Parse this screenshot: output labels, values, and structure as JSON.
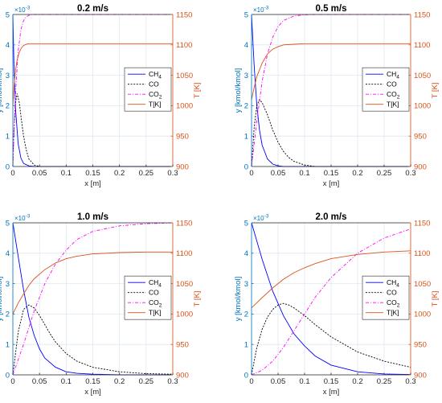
{
  "colors": {
    "left_axis": "#0072BD",
    "right_axis": "#D95319",
    "grid": "#dfe8f2",
    "axis": "#262626",
    "ch4": "#0000FF",
    "co": "#000000",
    "co2": "#FF00FF",
    "temp": "#D95319"
  },
  "chart_data": [
    {
      "type": "line",
      "title": "0.2 m/s",
      "xlabel": "x [m]",
      "ylabel_left": "y [kmol/kmol]",
      "ylabel_right": "T [K]",
      "left_exponent": "×10",
      "left_exponent_power": "-3",
      "xlim": [
        0,
        0.3
      ],
      "ylim_left": [
        0,
        5
      ],
      "ylim_right": [
        900,
        1150
      ],
      "xticks": [
        "0",
        "0.05",
        "0.1",
        "0.15",
        "0.2",
        "0.25",
        "0.3"
      ],
      "yticks_left": [
        "0",
        "1",
        "2",
        "3",
        "4",
        "5"
      ],
      "yticks_right": [
        "900",
        "950",
        "1000",
        "1050",
        "1100",
        "1150"
      ],
      "grid": true,
      "legend_position": "center-right",
      "legend": [
        {
          "label": "CH",
          "sub": "4",
          "style": "solid",
          "color_key": "ch4"
        },
        {
          "label": "CO",
          "sub": "",
          "style": "dotted",
          "color_key": "co"
        },
        {
          "label": "CO",
          "sub": "2",
          "style": "dashdot",
          "color_key": "co2"
        },
        {
          "label": "T[K]",
          "sub": "",
          "style": "solid",
          "color_key": "temp"
        }
      ],
      "series": [
        {
          "name": "CH4",
          "axis": "left",
          "x": [
            0,
            0.002,
            0.005,
            0.01,
            0.015,
            0.02,
            0.03,
            0.04,
            0.3
          ],
          "y": [
            5.0,
            3.4,
            1.9,
            0.75,
            0.28,
            0.1,
            0.02,
            0.0,
            0.0
          ]
        },
        {
          "name": "CO",
          "axis": "left",
          "x": [
            0,
            0.002,
            0.005,
            0.008,
            0.012,
            0.016,
            0.02,
            0.025,
            0.03,
            0.04,
            0.05,
            0.3
          ],
          "y": [
            0.0,
            1.2,
            2.1,
            2.4,
            2.1,
            1.55,
            1.0,
            0.55,
            0.25,
            0.05,
            0.0,
            0.0
          ]
        },
        {
          "name": "CO2",
          "axis": "left",
          "x": [
            0,
            0.002,
            0.005,
            0.01,
            0.015,
            0.02,
            0.025,
            0.03,
            0.035,
            0.3
          ],
          "y": [
            0.0,
            1.0,
            2.4,
            3.8,
            4.5,
            4.8,
            4.92,
            4.97,
            5.0,
            5.0
          ]
        },
        {
          "name": "T[K]",
          "axis": "right",
          "x": [
            0,
            0.002,
            0.005,
            0.008,
            0.012,
            0.016,
            0.02,
            0.025,
            0.03,
            0.04,
            0.3
          ],
          "y": [
            1000,
            1030,
            1058,
            1075,
            1088,
            1095,
            1099,
            1101,
            1102,
            1102,
            1102
          ]
        }
      ]
    },
    {
      "type": "line",
      "title": "0.5 m/s",
      "xlabel": "x [m]",
      "ylabel_left": "y [kmol/kmol]",
      "ylabel_right": "T [K]",
      "left_exponent": "×10",
      "left_exponent_power": "-3",
      "xlim": [
        0,
        0.3
      ],
      "ylim_left": [
        0,
        5
      ],
      "ylim_right": [
        900,
        1150
      ],
      "xticks": [
        "0",
        "0.05",
        "0.1",
        "0.15",
        "0.2",
        "0.25",
        "0.3"
      ],
      "yticks_left": [
        "0",
        "1",
        "2",
        "3",
        "4",
        "5"
      ],
      "yticks_right": [
        "900",
        "950",
        "1000",
        "1050",
        "1100",
        "1150"
      ],
      "grid": true,
      "legend_position": "center-right",
      "legend": [
        {
          "label": "CH",
          "sub": "4",
          "style": "solid",
          "color_key": "ch4"
        },
        {
          "label": "CO",
          "sub": "",
          "style": "dotted",
          "color_key": "co"
        },
        {
          "label": "CO",
          "sub": "2",
          "style": "dashdot",
          "color_key": "co2"
        },
        {
          "label": "T[K]",
          "sub": "",
          "style": "solid",
          "color_key": "temp"
        }
      ],
      "series": [
        {
          "name": "CH4",
          "axis": "left",
          "x": [
            0,
            0.005,
            0.01,
            0.015,
            0.02,
            0.03,
            0.04,
            0.05,
            0.06,
            0.3
          ],
          "y": [
            5.0,
            3.3,
            2.0,
            1.2,
            0.7,
            0.25,
            0.08,
            0.02,
            0.0,
            0.0
          ]
        },
        {
          "name": "CO",
          "axis": "left",
          "x": [
            0,
            0.005,
            0.01,
            0.015,
            0.02,
            0.03,
            0.04,
            0.05,
            0.06,
            0.07,
            0.08,
            0.1,
            0.12,
            0.3
          ],
          "y": [
            0.0,
            1.3,
            2.0,
            2.2,
            2.1,
            1.7,
            1.2,
            0.8,
            0.5,
            0.3,
            0.17,
            0.05,
            0.0,
            0.0
          ]
        },
        {
          "name": "CO2",
          "axis": "left",
          "x": [
            0,
            0.01,
            0.02,
            0.03,
            0.04,
            0.05,
            0.06,
            0.08,
            0.1,
            0.12,
            0.3
          ],
          "y": [
            0.0,
            1.5,
            2.8,
            3.7,
            4.25,
            4.6,
            4.8,
            4.95,
            4.99,
            5.0,
            5.0
          ]
        },
        {
          "name": "T[K]",
          "axis": "right",
          "x": [
            0,
            0.005,
            0.01,
            0.02,
            0.03,
            0.04,
            0.05,
            0.06,
            0.08,
            0.1,
            0.3
          ],
          "y": [
            1010,
            1030,
            1048,
            1070,
            1085,
            1093,
            1097,
            1100,
            1101,
            1102,
            1102
          ]
        }
      ]
    },
    {
      "type": "line",
      "title": "1.0 m/s",
      "xlabel": "x [m]",
      "ylabel_left": "y [kmol/kmol]",
      "ylabel_right": "T [K]",
      "left_exponent": "×10",
      "left_exponent_power": "-3",
      "xlim": [
        0,
        0.3
      ],
      "ylim_left": [
        0,
        5
      ],
      "ylim_right": [
        900,
        1150
      ],
      "xticks": [
        "0",
        "0.05",
        "0.1",
        "0.15",
        "0.2",
        "0.25",
        "0.3"
      ],
      "yticks_left": [
        "0",
        "1",
        "2",
        "3",
        "4",
        "5"
      ],
      "yticks_right": [
        "900",
        "950",
        "1000",
        "1050",
        "1100",
        "1150"
      ],
      "grid": true,
      "legend_position": "center-right",
      "legend": [
        {
          "label": "CH",
          "sub": "4",
          "style": "solid",
          "color_key": "ch4"
        },
        {
          "label": "CO",
          "sub": "",
          "style": "dotted",
          "color_key": "co"
        },
        {
          "label": "CO",
          "sub": "2",
          "style": "dashdot",
          "color_key": "co2"
        },
        {
          "label": "T[K]",
          "sub": "",
          "style": "solid",
          "color_key": "temp"
        }
      ],
      "series": [
        {
          "name": "CH4",
          "axis": "left",
          "x": [
            0,
            0.01,
            0.02,
            0.03,
            0.04,
            0.05,
            0.06,
            0.08,
            0.1,
            0.12,
            0.15,
            0.2,
            0.3
          ],
          "y": [
            5.0,
            3.9,
            2.8,
            1.9,
            1.3,
            0.85,
            0.55,
            0.25,
            0.1,
            0.05,
            0.02,
            0.0,
            0.0
          ]
        },
        {
          "name": "CO",
          "axis": "left",
          "x": [
            0,
            0.01,
            0.02,
            0.03,
            0.04,
            0.05,
            0.06,
            0.07,
            0.08,
            0.1,
            0.12,
            0.15,
            0.2,
            0.25,
            0.3
          ],
          "y": [
            0.0,
            1.4,
            2.15,
            2.3,
            2.2,
            1.95,
            1.65,
            1.35,
            1.08,
            0.7,
            0.45,
            0.25,
            0.1,
            0.04,
            0.02
          ]
        },
        {
          "name": "CO2",
          "axis": "left",
          "x": [
            0,
            0.02,
            0.04,
            0.06,
            0.08,
            0.1,
            0.12,
            0.15,
            0.2,
            0.25,
            0.3
          ],
          "y": [
            0.0,
            1.0,
            2.1,
            3.0,
            3.65,
            4.1,
            4.45,
            4.72,
            4.9,
            4.97,
            5.0
          ]
        },
        {
          "name": "T[K]",
          "axis": "right",
          "x": [
            0,
            0.01,
            0.02,
            0.03,
            0.04,
            0.06,
            0.08,
            0.1,
            0.12,
            0.15,
            0.2,
            0.25,
            0.3
          ],
          "y": [
            1000,
            1018,
            1033,
            1047,
            1058,
            1073,
            1084,
            1091,
            1095,
            1099,
            1101,
            1102,
            1102
          ]
        }
      ]
    },
    {
      "type": "line",
      "title": "2.0 m/s",
      "xlabel": "x [m]",
      "ylabel_left": "y [kmol/kmol]",
      "ylabel_right": "T [K]",
      "left_exponent": "×10",
      "left_exponent_power": "-3",
      "xlim": [
        0,
        0.3
      ],
      "ylim_left": [
        0,
        5
      ],
      "ylim_right": [
        900,
        1150
      ],
      "xticks": [
        "0",
        "0.05",
        "0.1",
        "0.15",
        "0.2",
        "0.25",
        "0.3"
      ],
      "yticks_left": [
        "0",
        "1",
        "2",
        "3",
        "4",
        "5"
      ],
      "yticks_right": [
        "900",
        "950",
        "1000",
        "1050",
        "1100",
        "1150"
      ],
      "grid": true,
      "legend_position": "center-right",
      "legend": [
        {
          "label": "CH",
          "sub": "4",
          "style": "solid",
          "color_key": "ch4"
        },
        {
          "label": "CO",
          "sub": "",
          "style": "dotted",
          "color_key": "co"
        },
        {
          "label": "CO",
          "sub": "2",
          "style": "dashdot",
          "color_key": "co2"
        },
        {
          "label": "T[K]",
          "sub": "",
          "style": "solid",
          "color_key": "temp"
        }
      ],
      "series": [
        {
          "name": "CH4",
          "axis": "left",
          "x": [
            0,
            0.02,
            0.04,
            0.06,
            0.08,
            0.1,
            0.12,
            0.15,
            0.2,
            0.25,
            0.3
          ],
          "y": [
            5.0,
            3.8,
            2.75,
            1.95,
            1.35,
            0.95,
            0.62,
            0.32,
            0.1,
            0.03,
            0.01
          ]
        },
        {
          "name": "CO",
          "axis": "left",
          "x": [
            0,
            0.01,
            0.02,
            0.03,
            0.04,
            0.05,
            0.06,
            0.07,
            0.08,
            0.1,
            0.12,
            0.15,
            0.2,
            0.25,
            0.3
          ],
          "y": [
            0.0,
            0.9,
            1.5,
            1.9,
            2.15,
            2.3,
            2.35,
            2.3,
            2.2,
            1.95,
            1.65,
            1.25,
            0.75,
            0.45,
            0.25
          ]
        },
        {
          "name": "CO2",
          "axis": "left",
          "x": [
            0,
            0.02,
            0.04,
            0.06,
            0.08,
            0.1,
            0.12,
            0.15,
            0.2,
            0.25,
            0.3
          ],
          "y": [
            0.0,
            0.15,
            0.45,
            0.9,
            1.45,
            2.0,
            2.55,
            3.2,
            4.0,
            4.5,
            4.8
          ]
        },
        {
          "name": "T[K]",
          "axis": "right",
          "x": [
            0,
            0.02,
            0.04,
            0.06,
            0.08,
            0.1,
            0.12,
            0.15,
            0.2,
            0.25,
            0.3
          ],
          "y": [
            1010,
            1027,
            1043,
            1057,
            1068,
            1076,
            1083,
            1091,
            1098,
            1102,
            1104
          ]
        }
      ]
    }
  ]
}
